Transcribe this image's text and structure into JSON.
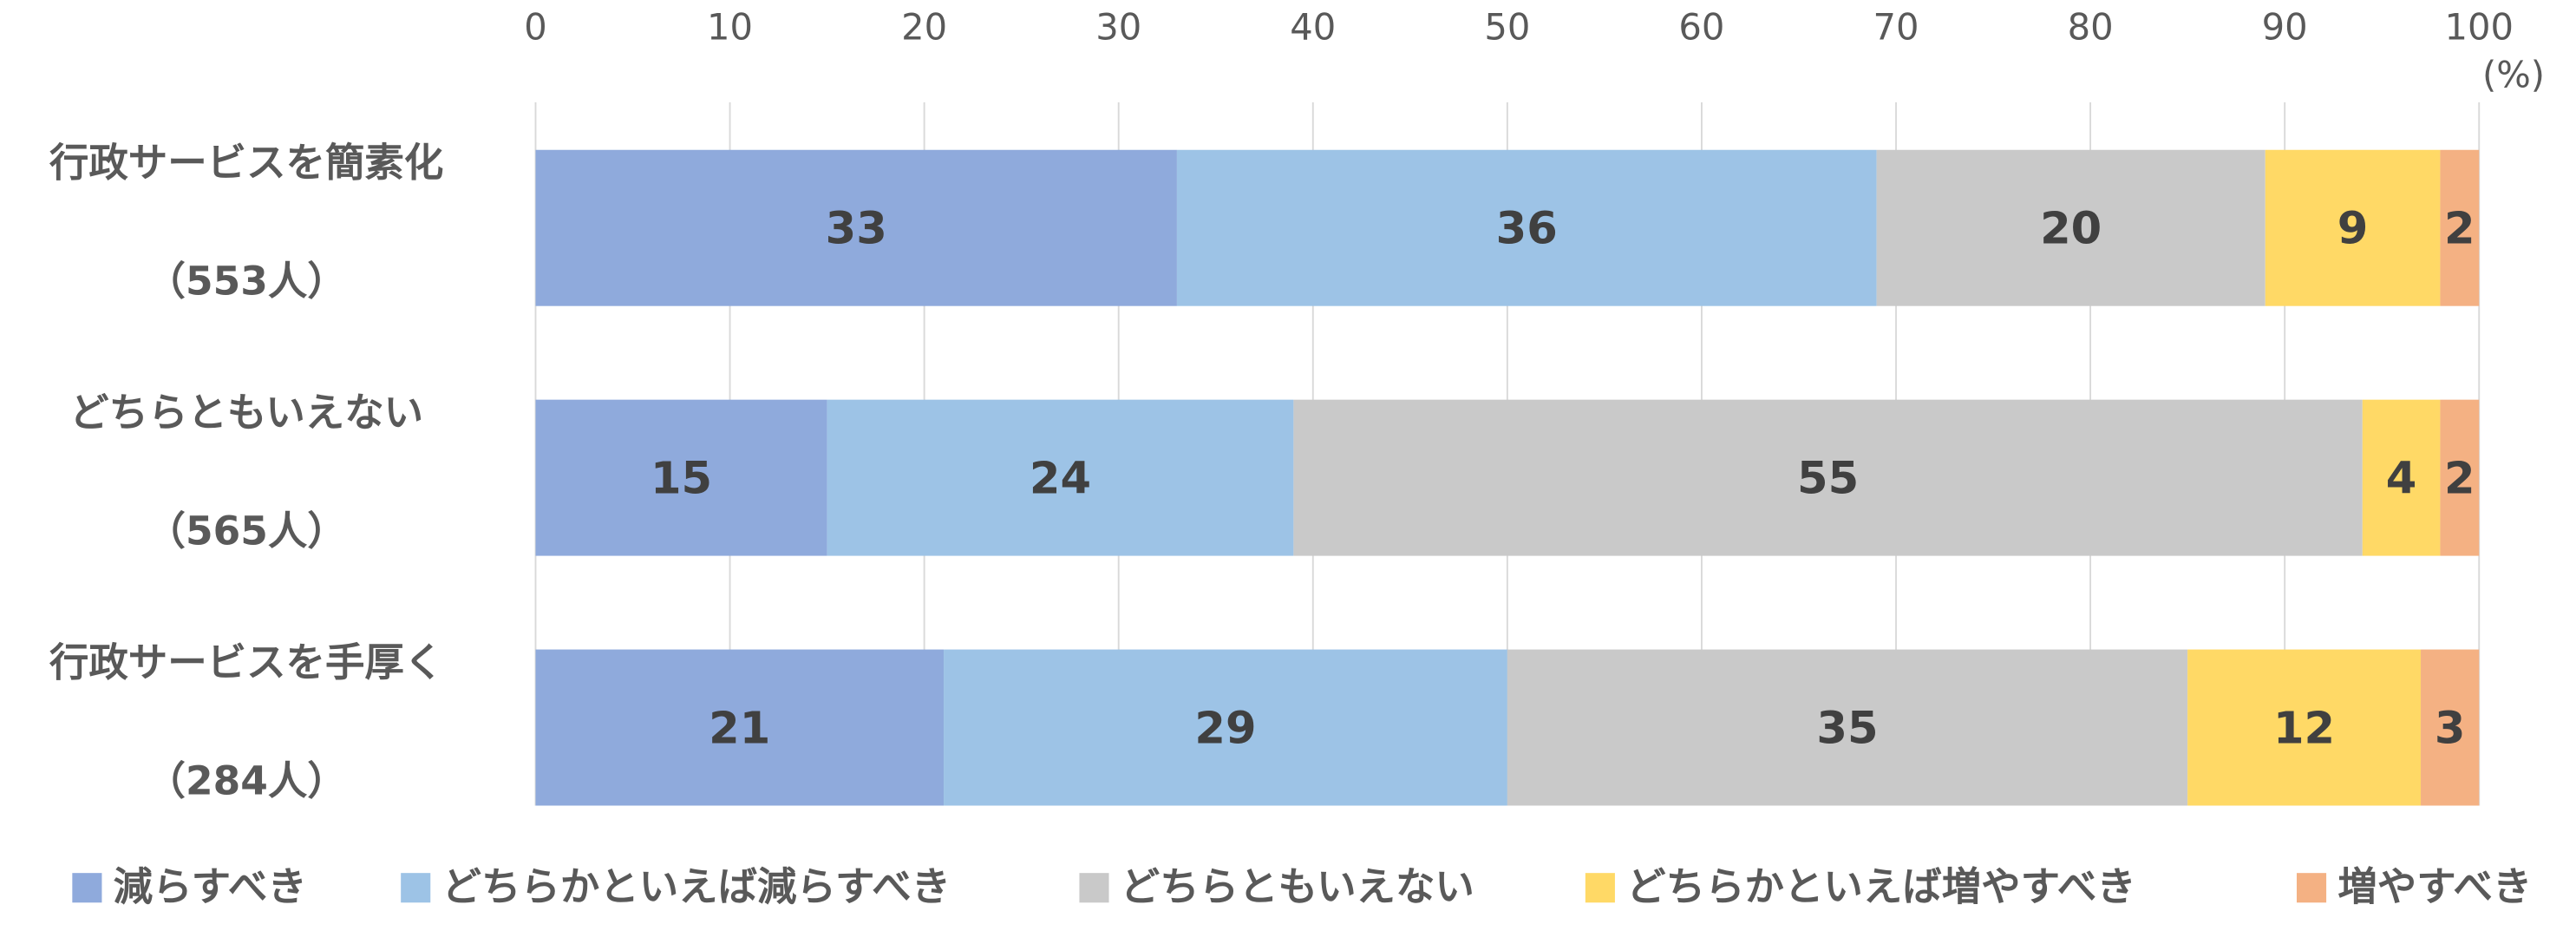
{
  "chart_data": {
    "type": "stacked-bar-horizontal",
    "categories": [
      [
        "行政サービスを簡素化",
        "（553人）"
      ],
      [
        "どちらともいえない",
        "（565人）"
      ],
      [
        "行政サービスを手厚く",
        "（284人）"
      ]
    ],
    "series": [
      {
        "name": "減らすべき",
        "color": "#8faadc",
        "values": [
          33,
          15,
          21
        ]
      },
      {
        "name": "どちらかといえば減らすべき",
        "color": "#9dc3e6",
        "values": [
          36,
          24,
          29
        ]
      },
      {
        "name": "どちらともいえない",
        "color": "#c9c9c9",
        "values": [
          20,
          55,
          35
        ]
      },
      {
        "name": "どちらかといえば増やすべき",
        "color": "#ffd966",
        "values": [
          9,
          4,
          12
        ]
      },
      {
        "name": "増やすべき",
        "color": "#f4b183",
        "values": [
          2,
          2,
          3
        ]
      }
    ],
    "xlim": [
      0,
      100
    ],
    "xticks": [
      0,
      10,
      20,
      30,
      40,
      50,
      60,
      70,
      80,
      90,
      100
    ],
    "xlabel": "(%)",
    "grid": true,
    "legend": "bottom"
  }
}
